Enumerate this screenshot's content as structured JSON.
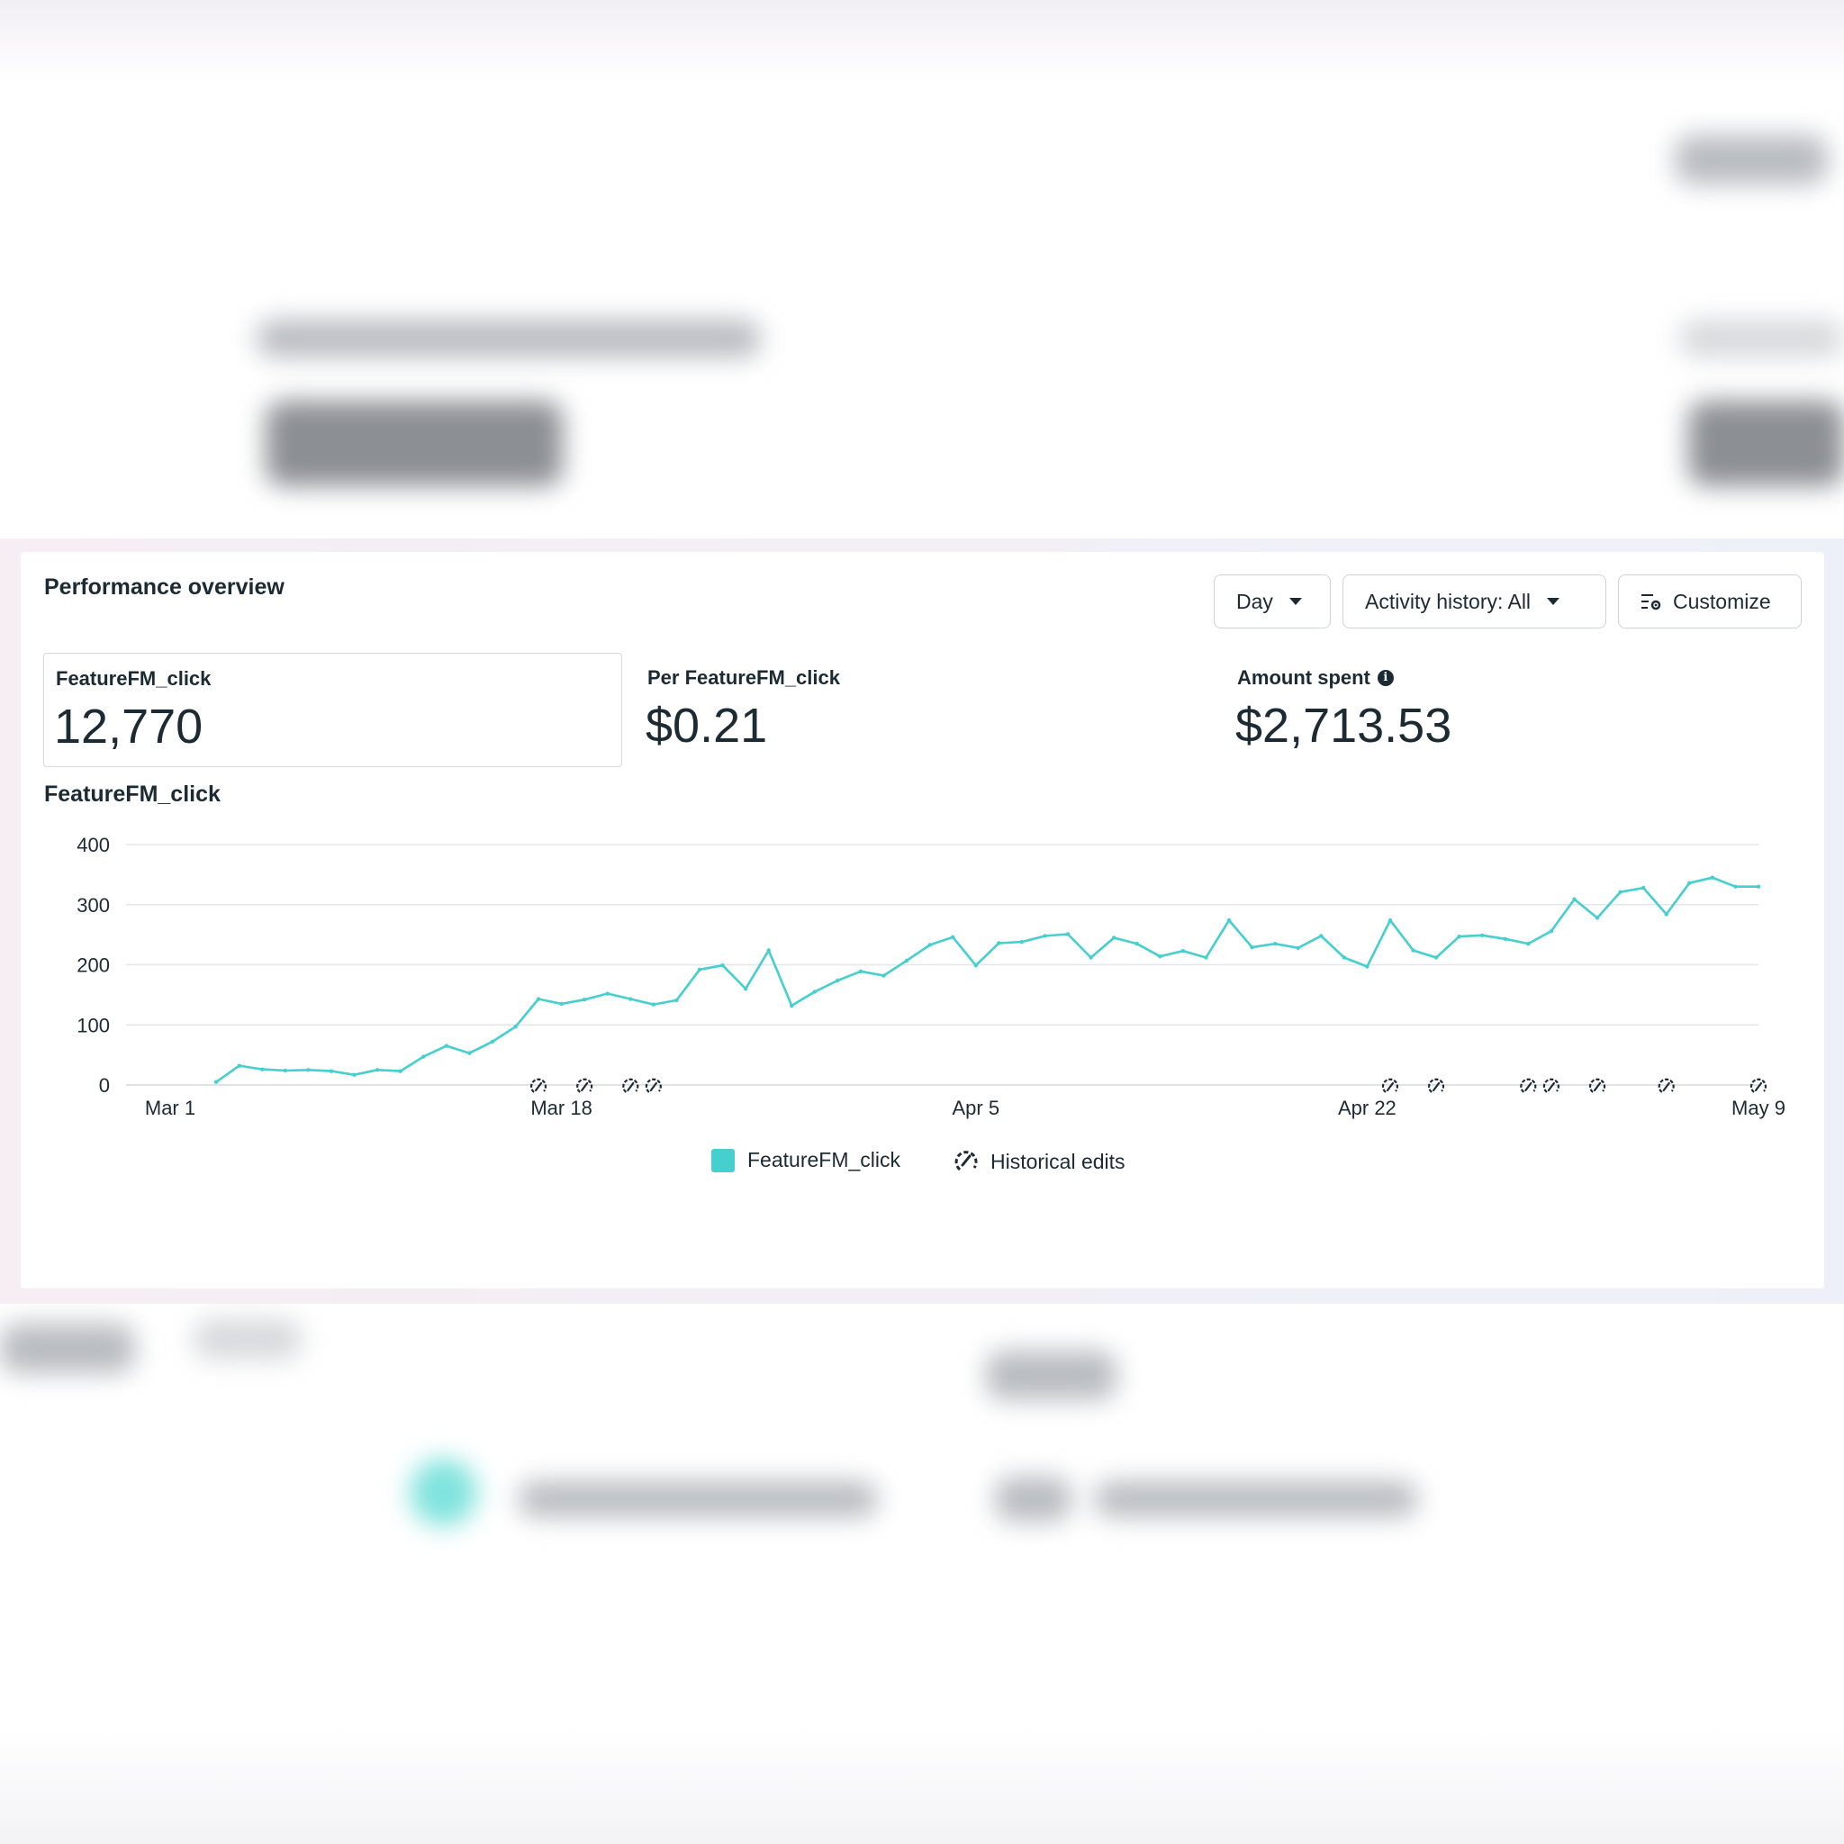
{
  "panel": {
    "title": "Performance overview",
    "controls": {
      "period_label": "Day",
      "activity_label": "Activity history: All",
      "customize_label": "Customize"
    }
  },
  "metrics": [
    {
      "label": "FeatureFM_click",
      "value": "12,770",
      "selected": true
    },
    {
      "label": "Per FeatureFM_click",
      "value": "$0.21",
      "selected": false
    },
    {
      "label": "Amount spent",
      "value": "$2,713.53",
      "selected": false,
      "info_icon": "info-icon"
    }
  ],
  "colors": {
    "accent": "#45cfcf",
    "text": "#1c2b33",
    "grid": "#e4e6ea"
  },
  "chart_data": {
    "type": "line",
    "title": "FeatureFM_click",
    "xlabel": "",
    "ylabel": "",
    "ylim": [
      0,
      400
    ],
    "yticks": [
      0,
      100,
      200,
      300,
      400
    ],
    "xtick_labels": [
      "Mar 1",
      "Mar 18",
      "Apr 5",
      "Apr 22",
      "May 9"
    ],
    "xtick_days": [
      0,
      17,
      35,
      52,
      69
    ],
    "grid": true,
    "legend_position": "bottom",
    "series": [
      {
        "name": "FeatureFM_click",
        "color": "#45cfcf",
        "start_day": 2,
        "values": [
          5,
          32,
          26,
          24,
          25,
          23,
          17,
          25,
          23,
          47,
          65,
          53,
          72,
          97,
          143,
          135,
          142,
          152,
          143,
          134,
          141,
          192,
          199,
          160,
          224,
          132,
          155,
          174,
          189,
          182,
          207,
          233,
          246,
          199,
          236,
          238,
          248,
          251,
          212,
          245,
          235,
          214,
          223,
          212,
          274,
          229,
          235,
          228,
          248,
          212,
          197,
          274,
          224,
          212,
          247,
          249,
          243,
          235,
          256,
          309,
          278,
          321,
          328,
          284,
          336,
          345,
          330,
          330
        ]
      }
    ],
    "historical_edit_days": [
      16,
      18,
      20,
      21,
      53,
      55,
      59,
      60,
      62,
      65,
      69
    ],
    "legend": [
      {
        "label": "FeatureFM_click",
        "swatch": "#45cfcf"
      },
      {
        "label": "Historical edits",
        "icon": "historical-edit-icon"
      }
    ]
  }
}
